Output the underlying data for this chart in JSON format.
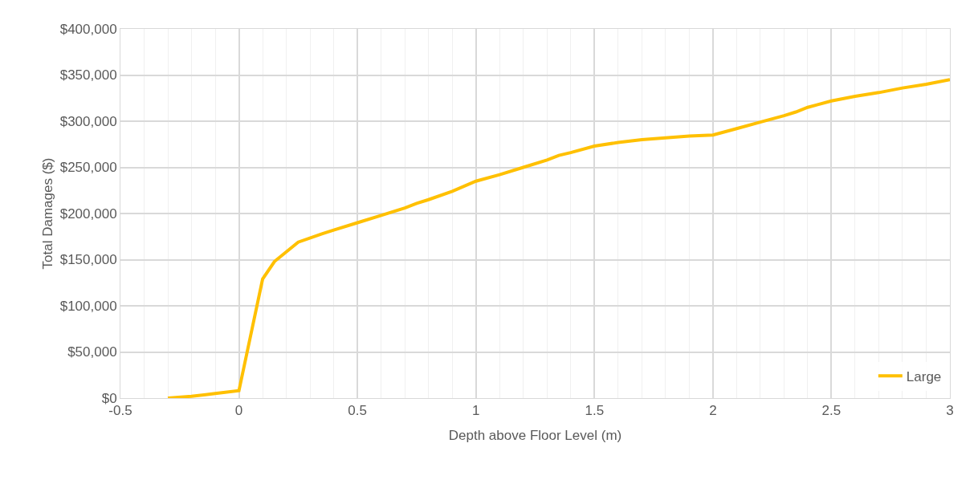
{
  "chart_data": {
    "type": "line",
    "xlabel": "Depth above Floor Level (m)",
    "ylabel": "Total Damages ($)",
    "x": [
      -0.3,
      -0.2,
      -0.1,
      0,
      0.1,
      0.15,
      0.25,
      0.35,
      0.4,
      0.5,
      0.6,
      0.7,
      0.75,
      0.8,
      0.9,
      1.0,
      1.1,
      1.2,
      1.3,
      1.35,
      1.4,
      1.5,
      1.6,
      1.7,
      1.8,
      1.9,
      2.0,
      2.1,
      2.2,
      2.3,
      2.35,
      2.4,
      2.5,
      2.6,
      2.7,
      2.8,
      2.9,
      3.0
    ],
    "series": [
      {
        "name": "Large",
        "color": "#ffc000",
        "values": [
          0,
          2000,
          5000,
          8000,
          129000,
          148000,
          169000,
          178000,
          182000,
          190000,
          198000,
          206000,
          211000,
          215000,
          224000,
          235000,
          242000,
          250000,
          258000,
          263000,
          266000,
          273000,
          277000,
          280000,
          282000,
          284000,
          285000,
          292000,
          299000,
          306000,
          310000,
          315000,
          322000,
          327000,
          331000,
          336000,
          340000,
          345000
        ]
      }
    ],
    "xlim": [
      -0.5,
      3
    ],
    "xticks": [
      -0.5,
      0,
      0.5,
      1,
      1.5,
      2,
      2.5,
      3
    ],
    "ylim": [
      0,
      400000
    ],
    "yticks": [
      {
        "value": 0,
        "label": "$0"
      },
      {
        "value": 50000,
        "label": "$50,000"
      },
      {
        "value": 100000,
        "label": "$100,000"
      },
      {
        "value": 150000,
        "label": "$150,000"
      },
      {
        "value": 200000,
        "label": "$200,000"
      },
      {
        "value": 250000,
        "label": "$250,000"
      },
      {
        "value": 300000,
        "label": "$300,000"
      },
      {
        "value": 350000,
        "label": "$350,000"
      },
      {
        "value": 400000,
        "label": "$400,000"
      }
    ],
    "grid": true,
    "legend": "bottom right",
    "marker": "none",
    "line_style": "solid"
  }
}
